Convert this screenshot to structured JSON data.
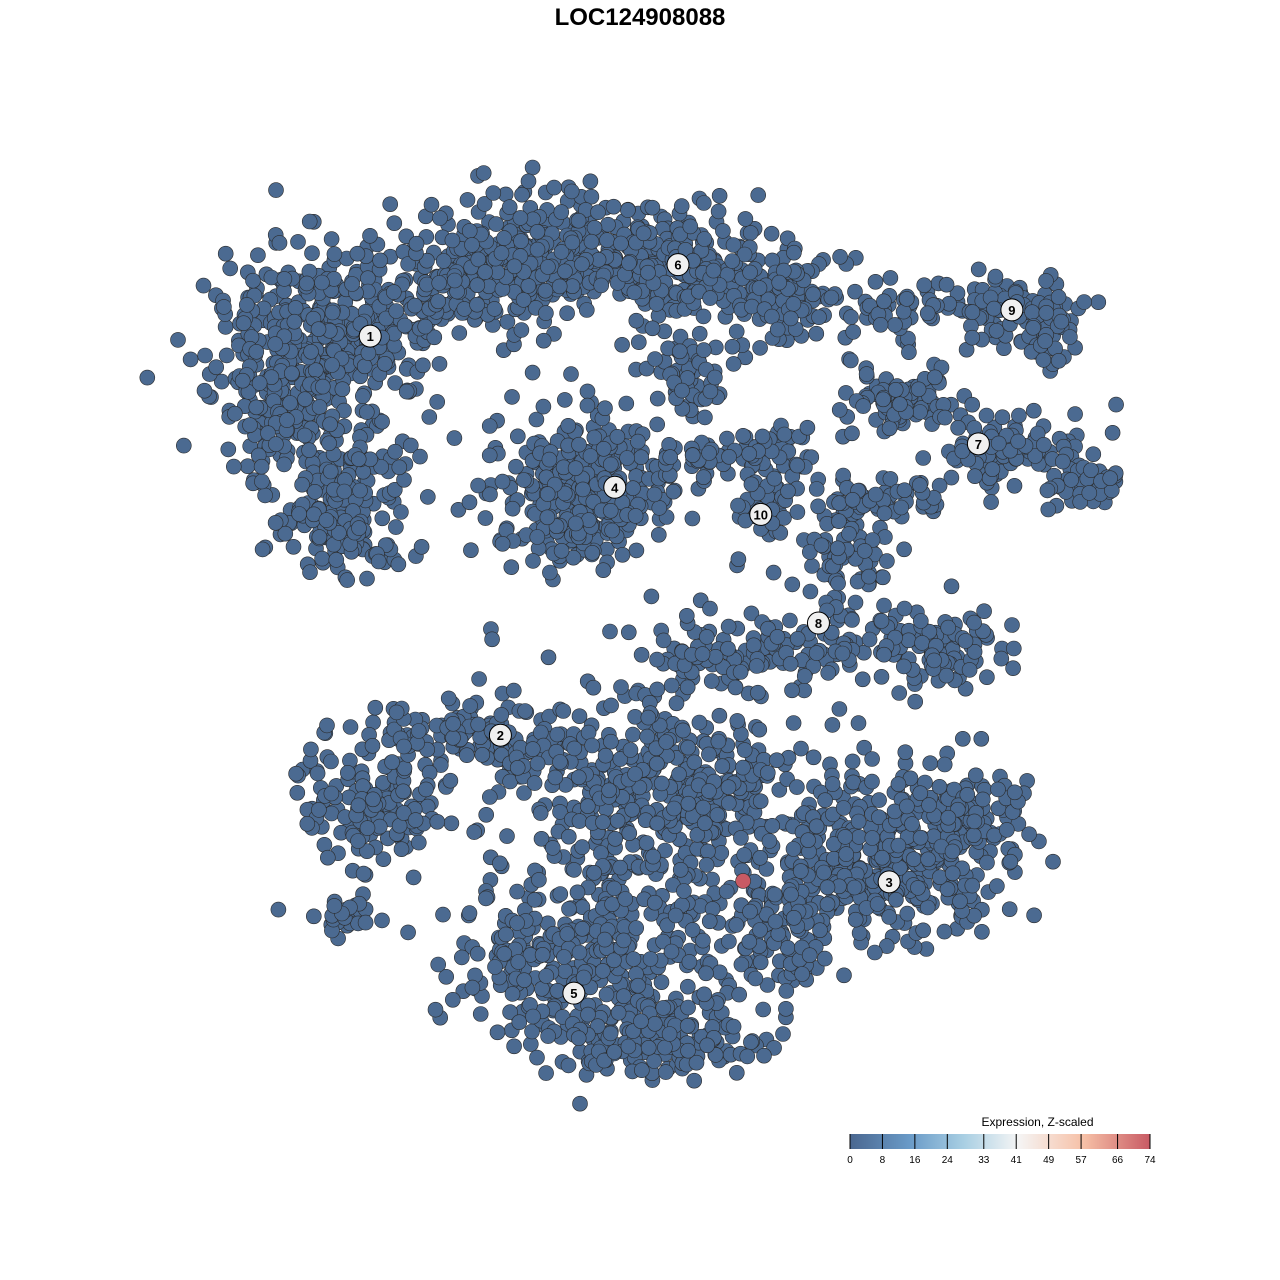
{
  "chart_data": {
    "type": "scatter",
    "title": "LOC124908088",
    "xlabel": "",
    "ylabel": "",
    "grid": false,
    "axes_visible": false,
    "xlim": [
      0,
      100
    ],
    "ylim": [
      0,
      100
    ],
    "point_color_default": "#4b6a91",
    "point_stroke": "#2b2b2b",
    "clusters": [
      {
        "label": "1",
        "x": 18.3,
        "y": 83.3
      },
      {
        "label": "2",
        "x": 32.3,
        "y": 39.2
      },
      {
        "label": "3",
        "x": 74.1,
        "y": 23.0
      },
      {
        "label": "4",
        "x": 44.6,
        "y": 66.6
      },
      {
        "label": "5",
        "x": 40.2,
        "y": 10.7
      },
      {
        "label": "6",
        "x": 51.4,
        "y": 91.2
      },
      {
        "label": "7",
        "x": 83.7,
        "y": 71.4
      },
      {
        "label": "8",
        "x": 66.5,
        "y": 51.6
      },
      {
        "label": "9",
        "x": 87.3,
        "y": 86.2
      },
      {
        "label": "10",
        "x": 60.3,
        "y": 63.6
      }
    ],
    "highlighted_points": [
      {
        "x": 58.4,
        "y": 23.1,
        "value": 74
      }
    ],
    "legend": {
      "title": "Expression, Z-scaled",
      "position": "bottom-right",
      "ticks": [
        "0",
        "8",
        "16",
        "24",
        "33",
        "41",
        "49",
        "57",
        "66",
        "74"
      ],
      "range": [
        0,
        74
      ],
      "colors": [
        "#4a6790",
        "#6a9bc8",
        "#a9cfe3",
        "#f5f5f5",
        "#f6c0a6",
        "#c85a64"
      ]
    }
  }
}
